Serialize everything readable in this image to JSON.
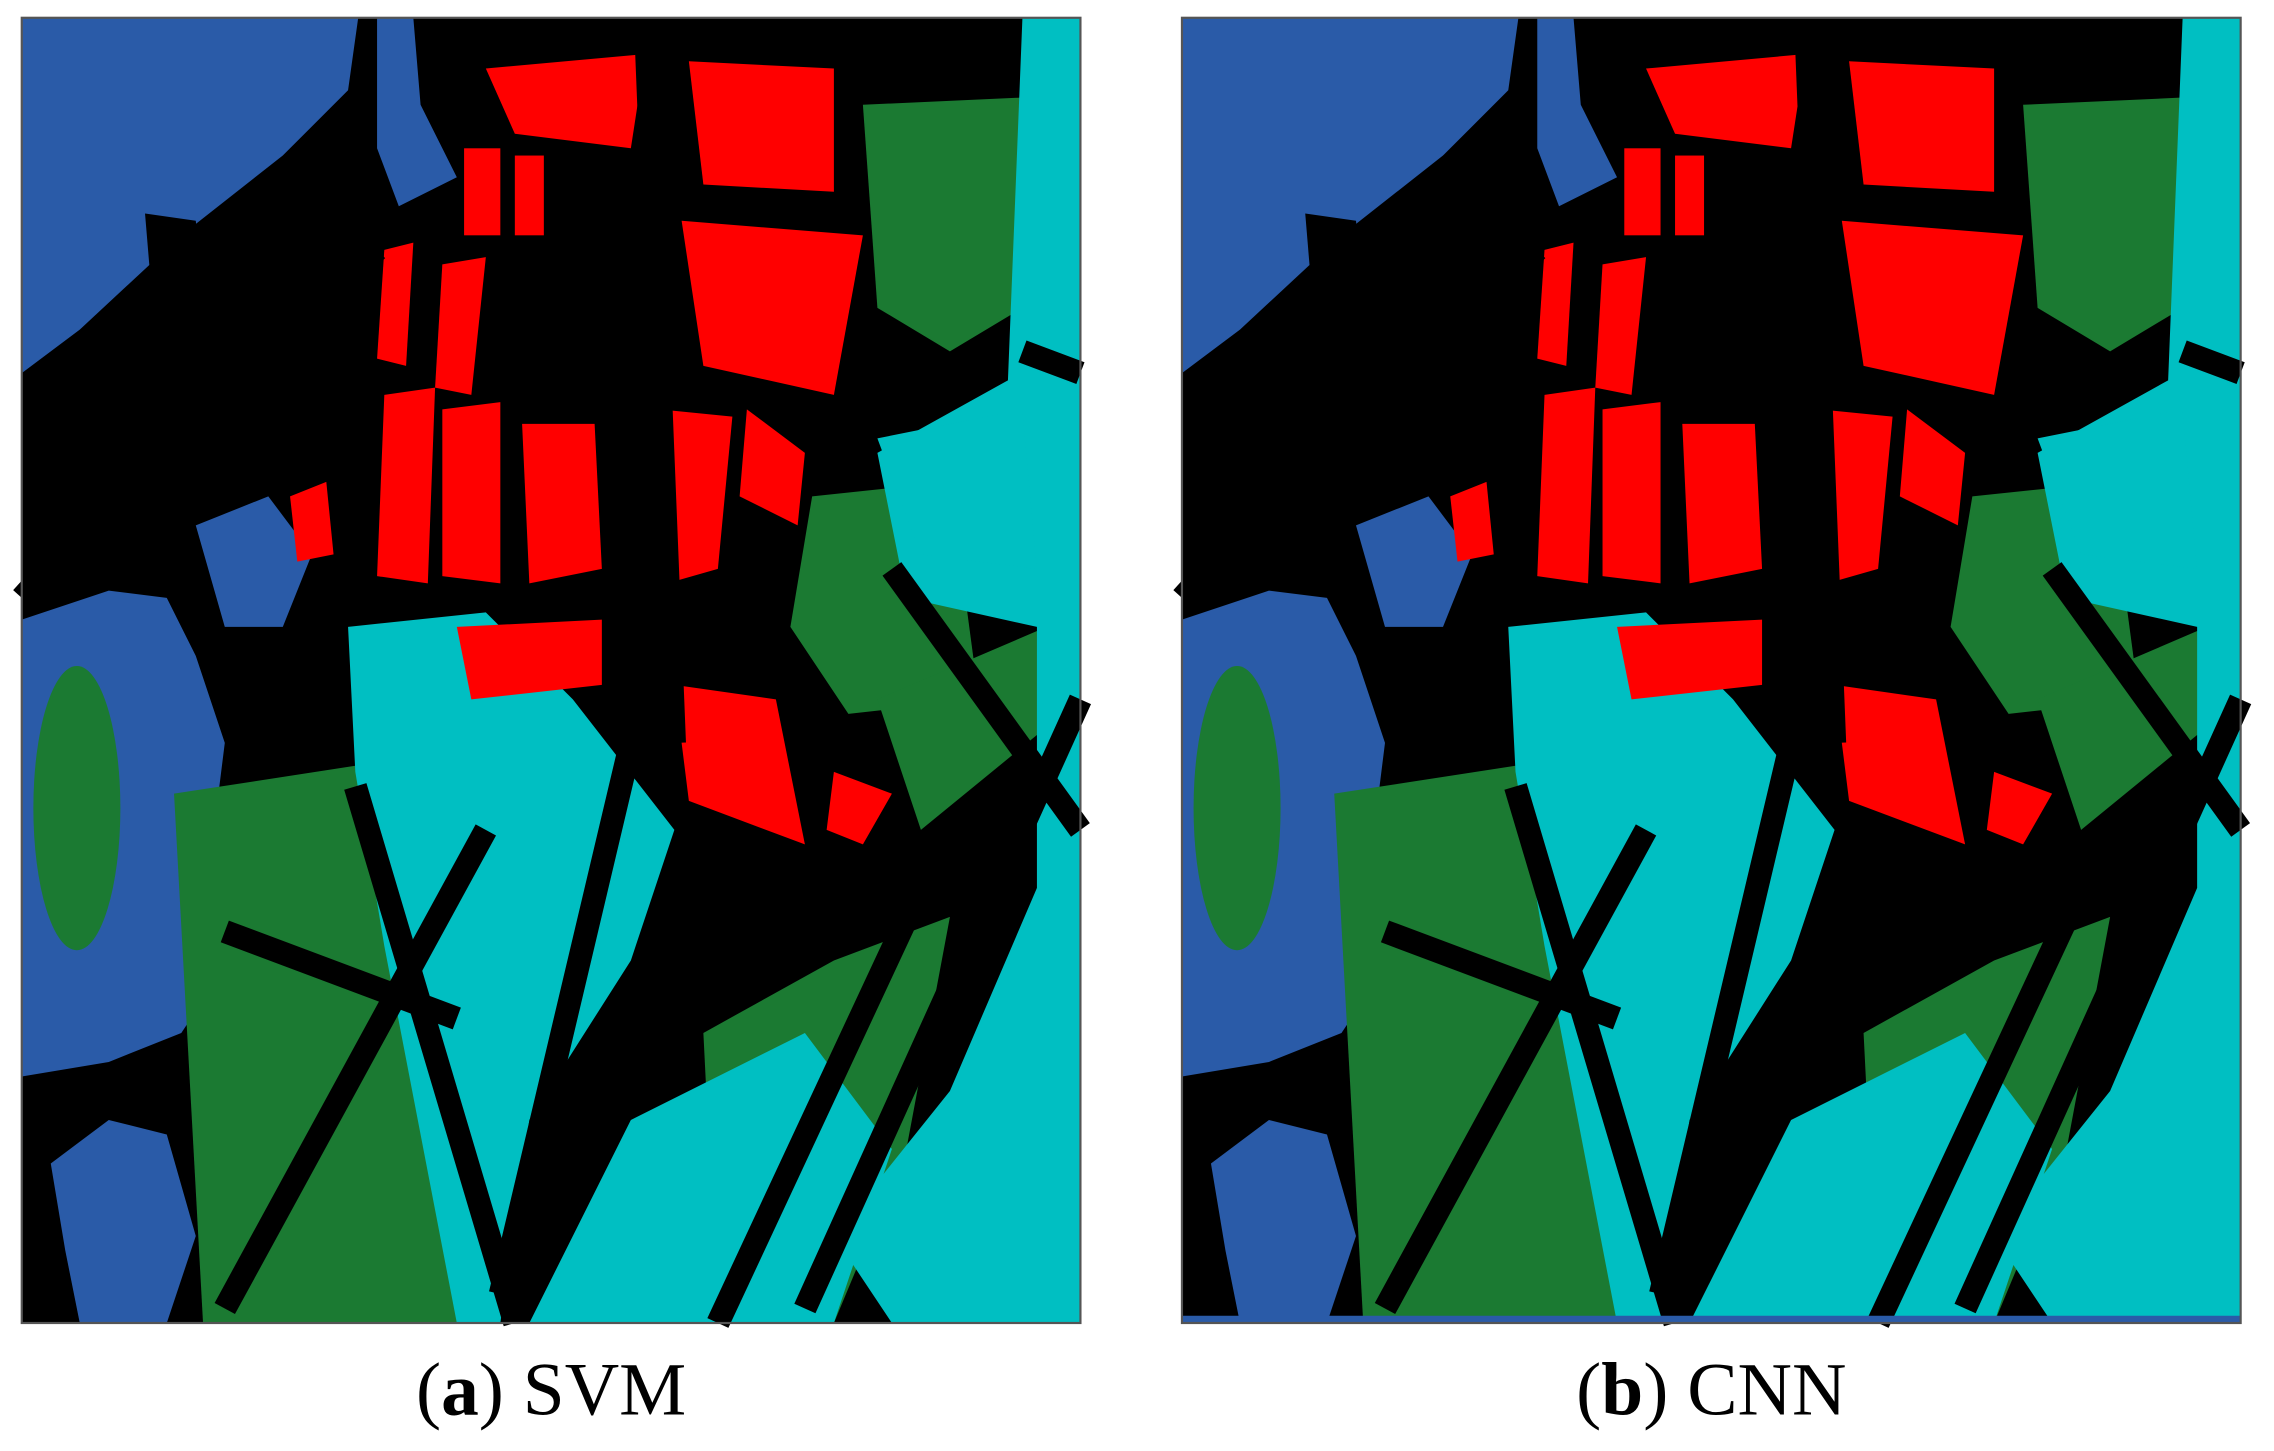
{
  "panels": [
    {
      "caption": [
        "(",
        "a",
        ") SVM"
      ]
    },
    {
      "caption": [
        "(",
        "b",
        ") CNN"
      ]
    }
  ]
}
